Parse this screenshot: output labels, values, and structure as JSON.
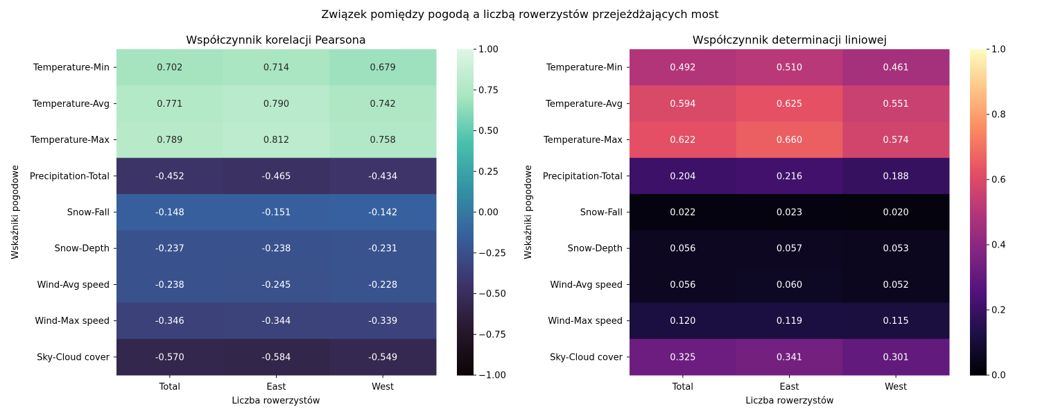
{
  "figure": {
    "title": "Związek pomiędzy pogodą a liczbą rowerzystów przejeżdżających most"
  },
  "chart_data": [
    {
      "type": "heatmap",
      "title": "Współczynnik korelacji Pearsona",
      "xlabel": "Liczba rowerzystów",
      "ylabel": "Wskaźniki pogodowe",
      "columns": [
        "Total",
        "East",
        "West"
      ],
      "rows": [
        "Temperature-Min",
        "Temperature-Avg",
        "Temperature-Max",
        "Precipitation-Total",
        "Snow-Fall",
        "Snow-Depth",
        "Wind-Avg speed",
        "Wind-Max speed",
        "Sky-Cloud cover"
      ],
      "values": [
        [
          0.702,
          0.714,
          0.679
        ],
        [
          0.771,
          0.79,
          0.742
        ],
        [
          0.789,
          0.812,
          0.758
        ],
        [
          -0.452,
          -0.465,
          -0.434
        ],
        [
          -0.148,
          -0.151,
          -0.142
        ],
        [
          -0.237,
          -0.238,
          -0.231
        ],
        [
          -0.238,
          -0.245,
          -0.228
        ],
        [
          -0.346,
          -0.344,
          -0.339
        ],
        [
          -0.57,
          -0.584,
          -0.549
        ]
      ],
      "labels": [
        [
          "0.702",
          "0.714",
          "0.679"
        ],
        [
          "0.771",
          "0.790",
          "0.742"
        ],
        [
          "0.789",
          "0.812",
          "0.758"
        ],
        [
          "-0.452",
          "-0.465",
          "-0.434"
        ],
        [
          "-0.148",
          "-0.151",
          "-0.142"
        ],
        [
          "-0.237",
          "-0.238",
          "-0.231"
        ],
        [
          "-0.238",
          "-0.245",
          "-0.228"
        ],
        [
          "-0.346",
          "-0.344",
          "-0.339"
        ],
        [
          "-0.570",
          "-0.584",
          "-0.549"
        ]
      ],
      "vmin": -1.0,
      "vmax": 1.0,
      "colormap": "mako",
      "colorbar_ticks": [
        1.0,
        0.75,
        0.5,
        0.25,
        0.0,
        -0.25,
        -0.5,
        -0.75,
        -1.0
      ],
      "colorbar_tick_labels": [
        "1.00",
        "0.75",
        "0.50",
        "0.25",
        "0.00",
        "−0.25",
        "−0.50",
        "−0.75",
        "−1.00"
      ]
    },
    {
      "type": "heatmap",
      "title": "Współczynnik determinacji liniowej",
      "xlabel": "Liczba rowerzystów",
      "ylabel": "Wskaźniki pogodowe",
      "columns": [
        "Total",
        "East",
        "West"
      ],
      "rows": [
        "Temperature-Min",
        "Temperature-Avg",
        "Temperature-Max",
        "Precipitation-Total",
        "Snow-Fall",
        "Snow-Depth",
        "Wind-Avg speed",
        "Wind-Max speed",
        "Sky-Cloud cover"
      ],
      "values": [
        [
          0.492,
          0.51,
          0.461
        ],
        [
          0.594,
          0.625,
          0.551
        ],
        [
          0.622,
          0.66,
          0.574
        ],
        [
          0.204,
          0.216,
          0.188
        ],
        [
          0.022,
          0.023,
          0.02
        ],
        [
          0.056,
          0.057,
          0.053
        ],
        [
          0.056,
          0.06,
          0.052
        ],
        [
          0.12,
          0.119,
          0.115
        ],
        [
          0.325,
          0.341,
          0.301
        ]
      ],
      "labels": [
        [
          "0.492",
          "0.510",
          "0.461"
        ],
        [
          "0.594",
          "0.625",
          "0.551"
        ],
        [
          "0.622",
          "0.660",
          "0.574"
        ],
        [
          "0.204",
          "0.216",
          "0.188"
        ],
        [
          "0.022",
          "0.023",
          "0.020"
        ],
        [
          "0.056",
          "0.057",
          "0.053"
        ],
        [
          "0.056",
          "0.060",
          "0.052"
        ],
        [
          "0.120",
          "0.119",
          "0.115"
        ],
        [
          "0.325",
          "0.341",
          "0.301"
        ]
      ],
      "vmin": 0.0,
      "vmax": 1.0,
      "colormap": "magma",
      "colorbar_ticks": [
        1.0,
        0.8,
        0.6,
        0.4,
        0.2,
        0.0
      ],
      "colorbar_tick_labels": [
        "1.0",
        "0.8",
        "0.6",
        "0.4",
        "0.2",
        "0.0"
      ]
    }
  ]
}
